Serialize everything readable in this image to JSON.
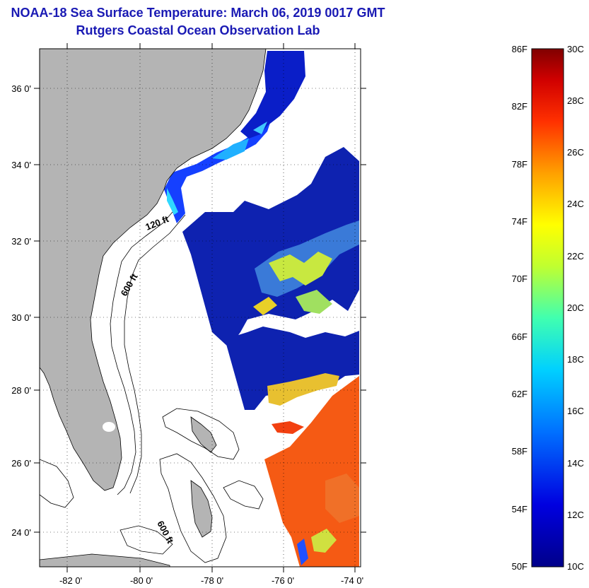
{
  "header": {
    "title": "NOAA-18 Sea Surface Temperature:  March 06, 2019 0017 GMT",
    "subtitle": "Rutgers Coastal Ocean Observation Lab"
  },
  "map": {
    "lon_ticks": [
      "-82 0'",
      "-80 0'",
      "-78 0'",
      "-76 0'",
      "-74 0'"
    ],
    "lat_ticks": [
      "36 0'",
      "34 0'",
      "32 0'",
      "30 0'",
      "28 0'",
      "26 0'",
      "24 0'"
    ],
    "contour_labels": [
      "120 ft",
      "600 ft",
      "600 ft"
    ],
    "land_color": "#b4b4b4"
  },
  "colorbar": {
    "f_labels": [
      "86F",
      "82F",
      "78F",
      "74F",
      "70F",
      "66F",
      "62F",
      "58F",
      "54F",
      "50F"
    ],
    "c_labels": [
      "30C",
      "28C",
      "26C",
      "24C",
      "22C",
      "20C",
      "18C",
      "16C",
      "14C",
      "12C",
      "10C"
    ]
  }
}
